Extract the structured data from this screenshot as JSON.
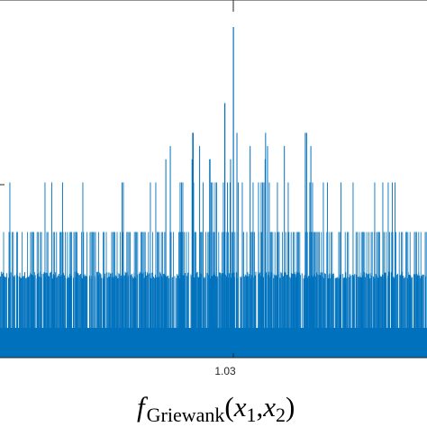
{
  "chart_data": {
    "type": "bar",
    "title": "",
    "xlabel": {
      "f": "f",
      "subscript": "Griewank",
      "open": "(",
      "x": "x",
      "sub1": "1",
      "comma": ",",
      "sub2": "2",
      "close": ")"
    },
    "ylabel": "",
    "grid": false,
    "x_ticks": [
      "1.03"
    ],
    "bar_color": "#0072bd",
    "axis_color": "#262626",
    "x_center": 1.03,
    "ylim": [
      0,
      1
    ],
    "levels": {
      "solid_band": 0.09,
      "dense_band": 0.26,
      "mid_band": 0.38,
      "upper_band": 0.53,
      "high_spikes": [
        0.6,
        0.64,
        0.68
      ],
      "top_spikes": [
        0.77,
        1.0
      ]
    }
  }
}
